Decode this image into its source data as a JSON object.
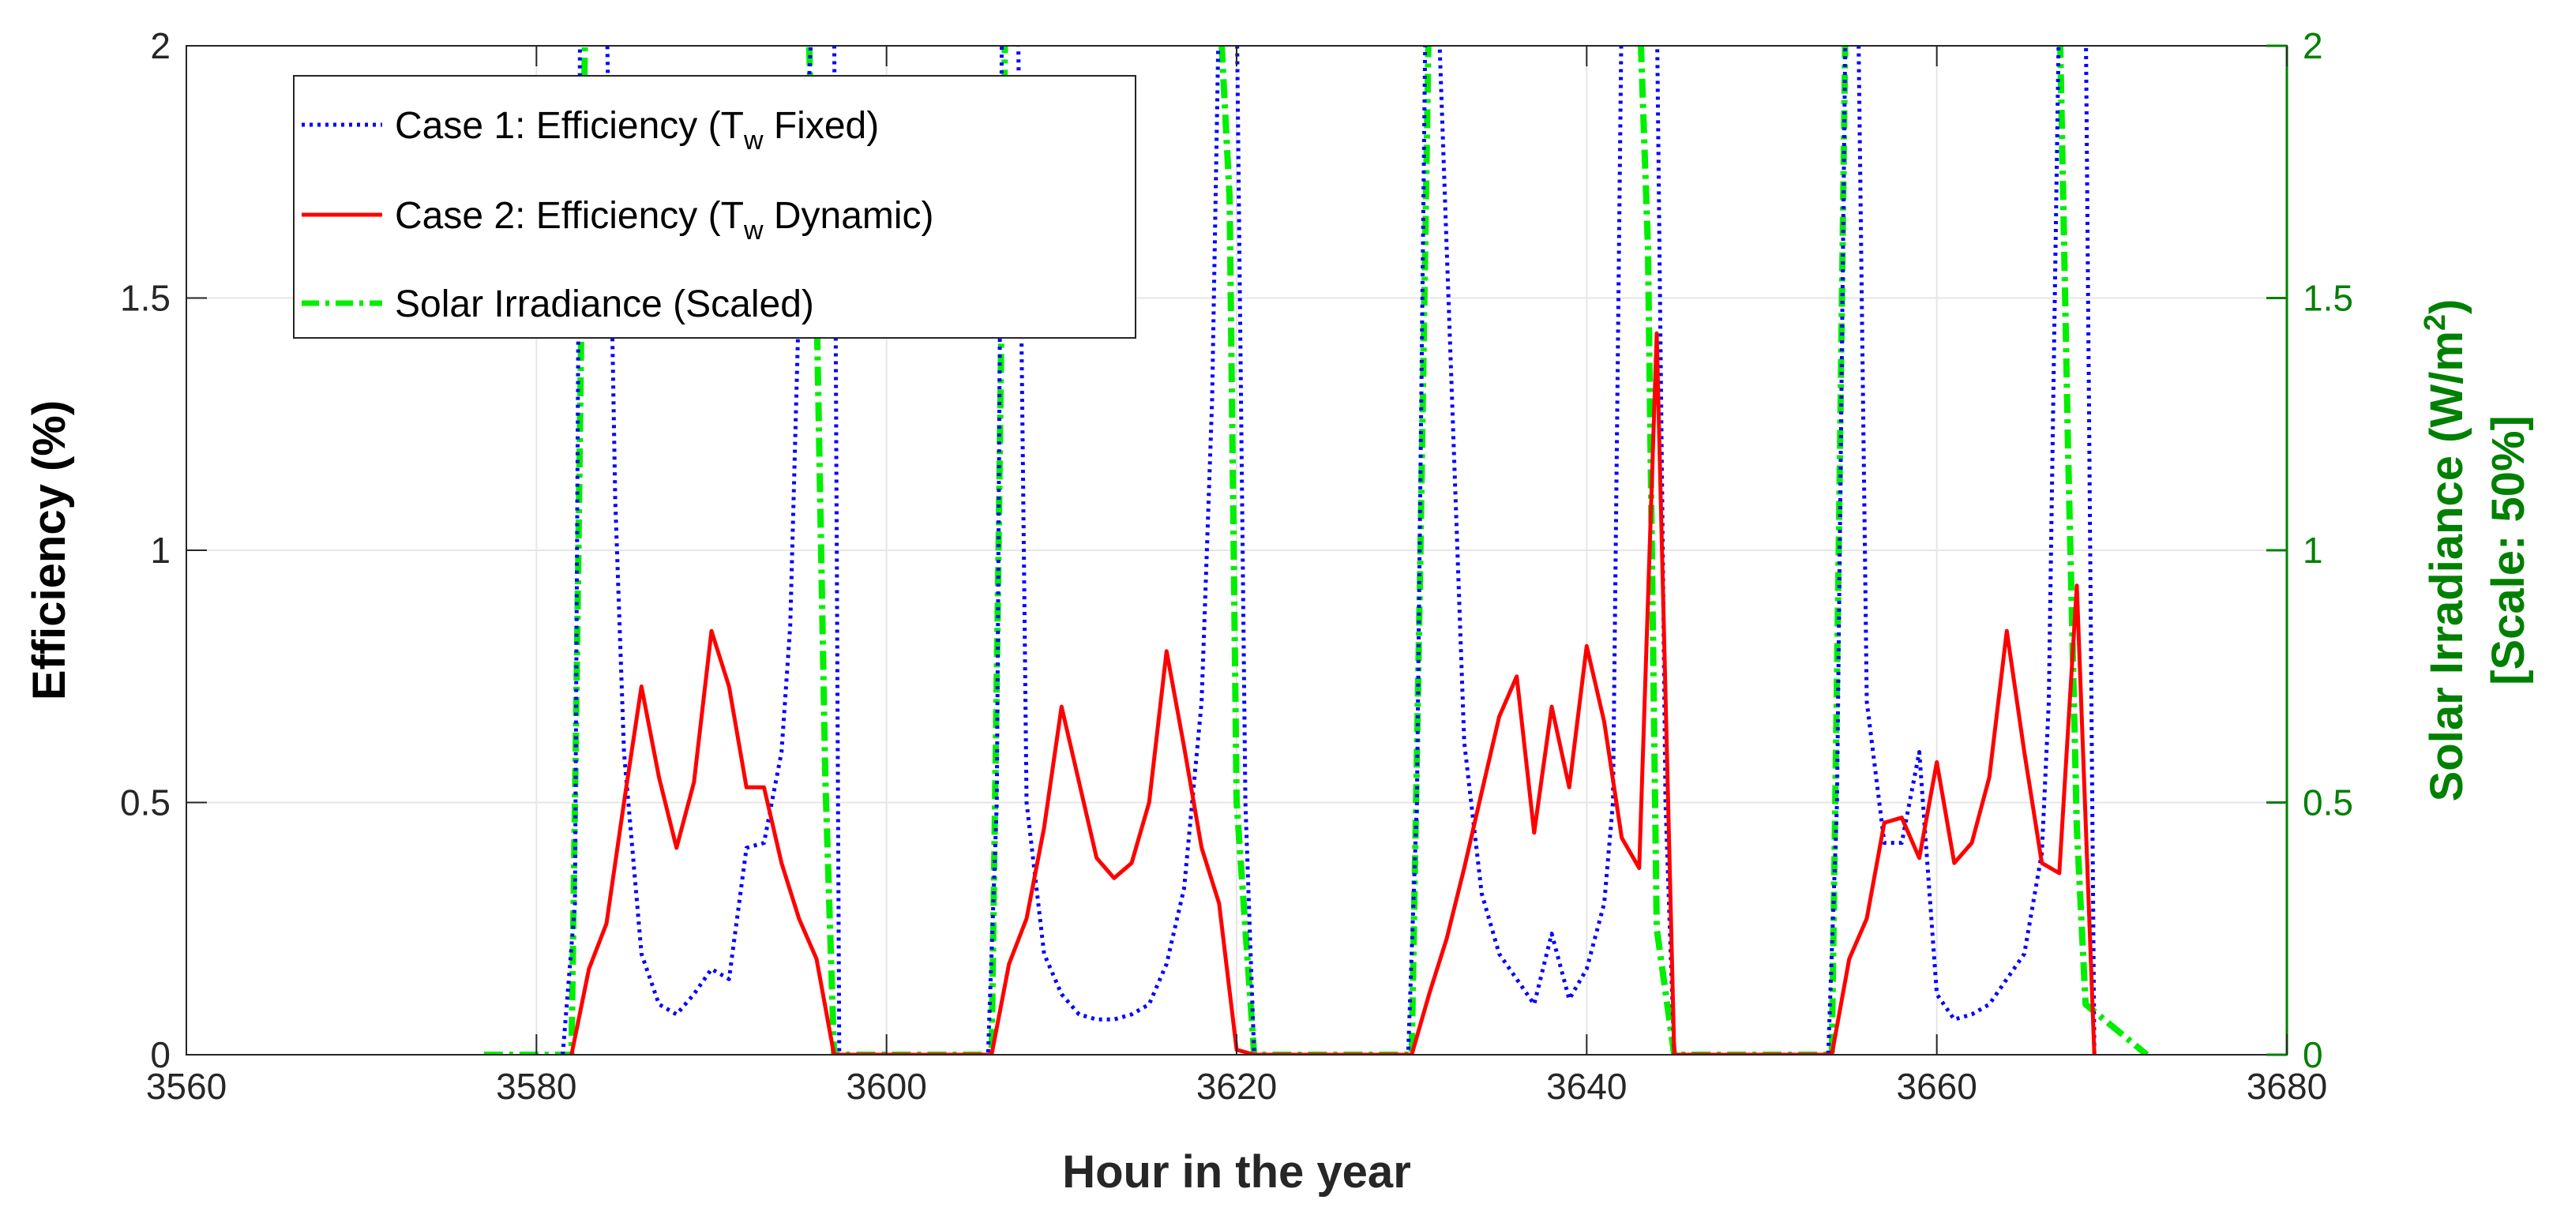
{
  "chart_data": {
    "type": "line",
    "xlabel": "Hour in the year",
    "ylabel_left": "Efficiency (%)",
    "ylabel_right_line1": "Solar Irradiance (W/m",
    "ylabel_right_sup": "2",
    "ylabel_right_line1_end": ")",
    "ylabel_right_line2": "[Scale: 50%]",
    "xlim": [
      3560,
      3680
    ],
    "ylim_left": [
      0,
      2
    ],
    "ylim_right": [
      0,
      2
    ],
    "x_ticks": [
      3560,
      3580,
      3600,
      3620,
      3640,
      3660,
      3680
    ],
    "x_tick_labels": [
      "3560",
      "3580",
      "3600",
      "3620",
      "3640",
      "3660",
      "3680"
    ],
    "y_ticks_left": [
      0,
      0.5,
      1,
      1.5,
      2
    ],
    "y_tick_labels_left": [
      "0",
      "0.5",
      "1",
      "1.5",
      "2"
    ],
    "y_ticks_right": [
      0,
      0.5,
      1,
      1.5,
      2
    ],
    "y_tick_labels_right": [
      "0",
      "0.5",
      "1",
      "1.5",
      "2"
    ],
    "grid": true,
    "legend_position": "top-left",
    "colors": {
      "case1": "#0000ff",
      "case2": "#ff0000",
      "solar": "#00ee00",
      "right_axis": "#008000",
      "axis": "#262626",
      "grid": "#e6e6e6"
    },
    "series": [
      {
        "name": "Case 1: Efficiency (T_w Fixed)",
        "legend_prefix": "Case 1: Efficiency (T",
        "legend_sub": "w",
        "legend_suffix": " Fixed)",
        "style": "dotted",
        "x": [
          3581.5,
          3582.2,
          3582.5,
          3583,
          3584,
          3584.5,
          3585,
          3586,
          3587,
          3588,
          3589,
          3590,
          3590.5,
          3591,
          3592,
          3593,
          3594,
          3594.5,
          3595,
          3595.8,
          3596.3,
          3597,
          3597.3,
          3605.8,
          3606.3,
          3606.6,
          3607,
          3607.5,
          3608,
          3609,
          3610,
          3611,
          3612,
          3613,
          3614,
          3615,
          3616,
          3617,
          3618,
          3618.6,
          3619,
          3620,
          3620.5,
          3621,
          3629.8,
          3630.3,
          3630.8,
          3631,
          3631.5,
          3632,
          3633,
          3634,
          3635,
          3636,
          3637,
          3638,
          3639,
          3640,
          3641,
          3641.5,
          3642,
          3643,
          3644,
          3644.5,
          3645,
          3653.8,
          3654.3,
          3654.8,
          3655,
          3655.5,
          3656,
          3657,
          3658,
          3659,
          3660,
          3661,
          3662,
          3663,
          3664,
          3665,
          3666,
          3666.4,
          3667,
          3668,
          3668.5,
          3669
        ],
        "y": [
          0,
          0.3,
          2.1,
          2.1,
          2.1,
          1.1,
          0.6,
          0.2,
          0.1,
          0.08,
          0.12,
          0.17,
          0.16,
          0.15,
          0.41,
          0.42,
          0.6,
          0.85,
          1.5,
          2.1,
          2.1,
          2.1,
          0,
          0,
          0.5,
          2.1,
          2.1,
          2.1,
          0.5,
          0.2,
          0.12,
          0.08,
          0.07,
          0.07,
          0.08,
          0.1,
          0.18,
          0.33,
          0.7,
          1.3,
          2.1,
          2.1,
          0.5,
          0,
          0,
          0.5,
          2.1,
          2.1,
          2.1,
          1.6,
          0.62,
          0.32,
          0.2,
          0.15,
          0.1,
          0.24,
          0.11,
          0.17,
          0.3,
          0.5,
          2.1,
          2.1,
          2.1,
          0.5,
          0,
          0,
          0.5,
          2.1,
          2.1,
          2.1,
          0.7,
          0.42,
          0.42,
          0.6,
          0.12,
          0.07,
          0.08,
          0.1,
          0.15,
          0.2,
          0.4,
          0.7,
          2.1,
          2.1,
          2.1,
          0
        ]
      },
      {
        "name": "Case 2: Efficiency (T_w Dynamic)",
        "legend_prefix": "Case 2: Efficiency (T",
        "legend_sub": "w",
        "legend_suffix": " Dynamic)",
        "style": "solid",
        "x": [
          3582,
          3583,
          3584,
          3585,
          3586,
          3587,
          3588,
          3589,
          3590,
          3591,
          3592,
          3593,
          3594,
          3595,
          3596,
          3597,
          3606,
          3607,
          3608,
          3609,
          3610,
          3611,
          3612,
          3613,
          3614,
          3615,
          3616,
          3617,
          3618,
          3619,
          3620,
          3621,
          3630,
          3631,
          3632,
          3633,
          3634,
          3635,
          3636,
          3637,
          3638,
          3639,
          3640,
          3641,
          3642,
          3643,
          3644,
          3645,
          3654,
          3655,
          3656,
          3657,
          3658,
          3659,
          3660,
          3661,
          3662,
          3663,
          3664,
          3665,
          3666,
          3667,
          3668,
          3669
        ],
        "y": [
          0,
          0.17,
          0.26,
          0.5,
          0.73,
          0.55,
          0.41,
          0.54,
          0.84,
          0.73,
          0.53,
          0.53,
          0.38,
          0.27,
          0.19,
          0,
          0,
          0.18,
          0.27,
          0.45,
          0.69,
          0.54,
          0.39,
          0.35,
          0.38,
          0.5,
          0.8,
          0.61,
          0.41,
          0.3,
          0.01,
          0,
          0,
          0.12,
          0.23,
          0.37,
          0.52,
          0.67,
          0.75,
          0.44,
          0.69,
          0.53,
          0.81,
          0.66,
          0.43,
          0.37,
          1.43,
          0,
          0,
          0.19,
          0.27,
          0.46,
          0.47,
          0.39,
          0.58,
          0.38,
          0.42,
          0.55,
          0.84,
          0.6,
          0.38,
          0.36,
          0.93,
          0
        ]
      },
      {
        "name": "Solar Irradiance (Scaled)",
        "legend_label": "Solar Irradiance (Scaled)",
        "style": "dashdot",
        "x": [
          3577,
          3582,
          3582.4,
          3582.8,
          3595.5,
          3596,
          3596.5,
          3597,
          3606,
          3606.4,
          3606.8,
          3619,
          3619.6,
          3620,
          3621,
          3630,
          3630.5,
          3631,
          3643,
          3643.5,
          3644,
          3645,
          3654,
          3654.4,
          3654.8,
          3667,
          3667.5,
          3668,
          3668.5,
          3672
        ],
        "y": [
          0,
          0,
          1,
          2.1,
          2.1,
          1.5,
          0.55,
          0,
          0,
          1,
          2.1,
          2.1,
          1.7,
          0.5,
          0,
          0,
          1,
          2.1,
          2.1,
          1.6,
          0.25,
          0,
          0,
          1,
          2.1,
          2.1,
          1.2,
          0.45,
          0.1,
          0
        ]
      }
    ]
  }
}
